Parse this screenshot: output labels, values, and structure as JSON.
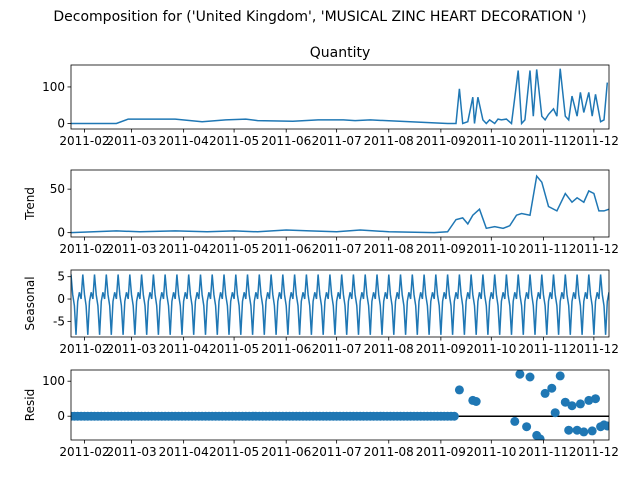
{
  "suptitle": "Decomposition for ('United Kingdom', 'MUSICAL ZINC HEART DECORATION ')",
  "colors": {
    "line": "#1f77b4",
    "axis": "#000000",
    "zero_line": "#000000"
  },
  "x_axis": {
    "ticks": [
      "2011-02",
      "2011-03",
      "2011-04",
      "2011-05",
      "2011-06",
      "2011-07",
      "2011-08",
      "2011-09",
      "2011-10",
      "2011-11",
      "2011-12"
    ],
    "range": [
      "2011-01-24",
      "2011-12-10"
    ]
  },
  "chart_data": [
    {
      "type": "line",
      "panel": "observed",
      "title": "Quantity",
      "ylabel": "",
      "ylim": [
        -15,
        160
      ],
      "yticks": [
        0,
        100
      ],
      "x": [
        "2011-01-24",
        "2011-02-20",
        "2011-02-27",
        "2011-03-27",
        "2011-04-12",
        "2011-04-26",
        "2011-05-08",
        "2011-05-15",
        "2011-06-05",
        "2011-06-20",
        "2011-07-05",
        "2011-07-12",
        "2011-07-21",
        "2011-09-05",
        "2011-09-10",
        "2011-09-12",
        "2011-09-14",
        "2011-09-17",
        "2011-09-20",
        "2011-09-21",
        "2011-09-23",
        "2011-09-26",
        "2011-09-28",
        "2011-09-30",
        "2011-10-03",
        "2011-10-05",
        "2011-10-07",
        "2011-10-10",
        "2011-10-13",
        "2011-10-17",
        "2011-10-19",
        "2011-10-21",
        "2011-10-24",
        "2011-10-26",
        "2011-10-28",
        "2011-10-31",
        "2011-11-02",
        "2011-11-04",
        "2011-11-07",
        "2011-11-09",
        "2011-11-11",
        "2011-11-14",
        "2011-11-16",
        "2011-11-18",
        "2011-11-21",
        "2011-11-23",
        "2011-11-25",
        "2011-11-28",
        "2011-11-30",
        "2011-12-02",
        "2011-12-05",
        "2011-12-07",
        "2011-12-09"
      ],
      "y": [
        0,
        0,
        12,
        12,
        5,
        10,
        12,
        8,
        6,
        10,
        10,
        8,
        10,
        0,
        0,
        95,
        0,
        5,
        72,
        0,
        72,
        10,
        0,
        10,
        0,
        12,
        10,
        12,
        0,
        145,
        0,
        10,
        145,
        20,
        148,
        20,
        10,
        25,
        40,
        20,
        150,
        20,
        10,
        75,
        20,
        85,
        30,
        85,
        20,
        80,
        5,
        10,
        112
      ]
    },
    {
      "type": "line",
      "panel": "trend",
      "ylabel": "Trend",
      "ylim": [
        -5,
        72
      ],
      "yticks": [
        0,
        50
      ],
      "x": [
        "2011-01-24",
        "2011-02-20",
        "2011-03-06",
        "2011-03-27",
        "2011-04-15",
        "2011-05-01",
        "2011-05-15",
        "2011-06-01",
        "2011-06-15",
        "2011-07-01",
        "2011-07-15",
        "2011-08-01",
        "2011-08-28",
        "2011-09-05",
        "2011-09-10",
        "2011-09-14",
        "2011-09-17",
        "2011-09-20",
        "2011-09-24",
        "2011-09-28",
        "2011-10-03",
        "2011-10-08",
        "2011-10-12",
        "2011-10-16",
        "2011-10-19",
        "2011-10-24",
        "2011-10-28",
        "2011-10-31",
        "2011-11-04",
        "2011-11-09",
        "2011-11-14",
        "2011-11-18",
        "2011-11-21",
        "2011-11-25",
        "2011-11-28",
        "2011-12-01",
        "2011-12-04",
        "2011-12-07",
        "2011-12-10"
      ],
      "y": [
        0,
        2,
        1,
        2,
        1,
        2,
        1,
        3,
        2,
        1,
        3,
        1,
        0,
        1,
        15,
        17,
        10,
        20,
        27,
        5,
        7,
        5,
        8,
        20,
        22,
        20,
        65,
        58,
        30,
        25,
        45,
        35,
        40,
        35,
        48,
        45,
        25,
        25,
        27
      ]
    },
    {
      "type": "line",
      "panel": "seasonal",
      "ylabel": "Seasonal",
      "ylim": [
        -8.5,
        6.5
      ],
      "yticks": [
        -5,
        0,
        5
      ],
      "period_days": 7,
      "pattern": [
        5.5,
        1.0,
        -1.5,
        -8.0,
        -0.5,
        1.5,
        0.0
      ],
      "x_start": "2011-01-24",
      "x_end": "2011-12-10"
    },
    {
      "type": "scatter",
      "panel": "resid",
      "ylabel": "Resid",
      "ylim": [
        -68,
        132
      ],
      "yticks": [
        0,
        100
      ],
      "zero_line": true,
      "baseline_start": "2011-01-24",
      "baseline_end": "2011-09-10",
      "baseline_value": 0,
      "outliers_x": [
        "2011-09-12",
        "2011-09-20",
        "2011-09-22",
        "2011-10-15",
        "2011-10-18",
        "2011-10-22",
        "2011-10-24",
        "2011-10-28",
        "2011-10-30",
        "2011-11-02",
        "2011-11-06",
        "2011-11-08",
        "2011-11-11",
        "2011-11-14",
        "2011-11-16",
        "2011-11-18",
        "2011-11-21",
        "2011-11-23",
        "2011-11-25",
        "2011-11-28",
        "2011-11-30",
        "2011-12-02",
        "2011-12-05",
        "2011-12-07",
        "2011-12-09"
      ],
      "outliers_y": [
        75,
        45,
        42,
        -15,
        120,
        -30,
        112,
        -55,
        -65,
        65,
        80,
        10,
        115,
        40,
        -40,
        30,
        -40,
        35,
        -45,
        45,
        -42,
        50,
        -30,
        -25,
        -28
      ]
    }
  ]
}
